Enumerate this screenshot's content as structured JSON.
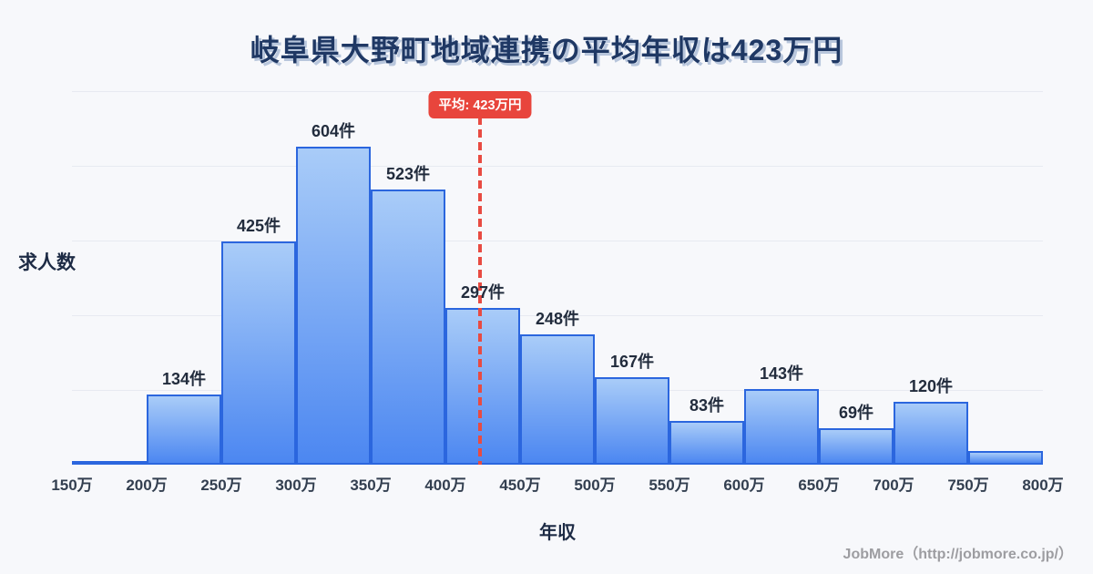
{
  "page": {
    "background_color": "#f7f8fb",
    "accent_red": "#e8453c",
    "bar_border_color": "#2b66de",
    "bar_fill_top": "#a9ccf8",
    "bar_fill_bottom": "#4c87f1",
    "grid_color": "#e7eaf1",
    "title_color": "#1f3864",
    "text_dark": "#222c3d",
    "footer_color": "#9d9da1"
  },
  "title": {
    "text": "岐阜県大野町地域連携の平均年収は423万円"
  },
  "average_marker": {
    "label": "平均: 423万円",
    "value_man_yen": 423
  },
  "footer": {
    "text": "JobMore（http://jobmore.co.jp/）"
  },
  "chart_data": {
    "type": "bar",
    "title": "岐阜県大野町地域連携の平均年収は423万円",
    "xlabel": "年収",
    "ylabel": "求人数",
    "x_unit": "万円",
    "bin_edges": [
      150,
      200,
      250,
      300,
      350,
      400,
      450,
      500,
      550,
      600,
      650,
      700,
      750,
      800
    ],
    "x_tick_labels": [
      "150万",
      "200万",
      "250万",
      "300万",
      "350万",
      "400万",
      "450万",
      "500万",
      "550万",
      "600万",
      "650万",
      "700万",
      "750万",
      "800万"
    ],
    "categories": [
      "150万-200万",
      "200万-250万",
      "250万-300万",
      "300万-350万",
      "350万-400万",
      "400万-450万",
      "450万-500万",
      "500万-550万",
      "550万-600万",
      "600万-650万",
      "650万-700万",
      "700万-750万",
      "750万-800万"
    ],
    "values": [
      5,
      134,
      425,
      604,
      523,
      297,
      248,
      167,
      83,
      143,
      69,
      120,
      26
    ],
    "bar_labels": [
      "",
      "134件",
      "425件",
      "604件",
      "523件",
      "297件",
      "248件",
      "167件",
      "83件",
      "143件",
      "69件",
      "120件",
      ""
    ],
    "average_line": {
      "value": 423,
      "label": "平均: 423万円",
      "style": "dashed-red"
    },
    "ylim": [
      0,
      710
    ],
    "xlim": [
      150,
      800
    ],
    "grid": "horizontal",
    "legend": "none"
  }
}
